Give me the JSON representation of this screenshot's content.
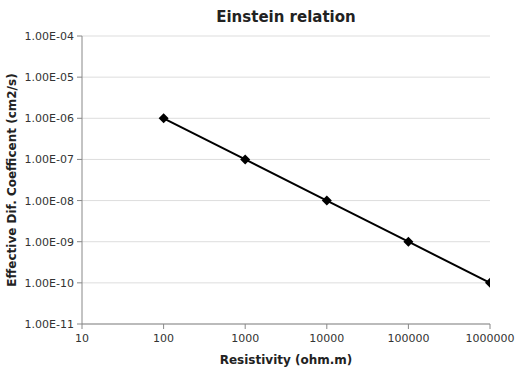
{
  "chart_data": {
    "type": "line",
    "title": "Einstein relation",
    "xlabel": "Resistivity (ohm.m)",
    "ylabel": "Effective Dif. Coefficent (cm2/s)",
    "x": [
      100,
      1000,
      10000,
      100000,
      1000000
    ],
    "series": [
      {
        "color": "#000000",
        "marker": "diamond",
        "values": [
          1e-06,
          1e-07,
          1e-08,
          1e-09,
          1e-10
        ]
      }
    ],
    "xlim": [
      10,
      1000000
    ],
    "ylim": [
      1e-11,
      0.0001
    ],
    "xticks": [
      10,
      100,
      1000,
      10000,
      100000,
      1000000
    ],
    "yticks": [
      {
        "value": 1e-11,
        "label": "1.00E-11"
      },
      {
        "value": 1e-10,
        "label": "1.00E-10"
      },
      {
        "value": 1e-09,
        "label": "1.00E-09"
      },
      {
        "value": 1e-08,
        "label": "1.00E-08"
      },
      {
        "value": 1e-07,
        "label": "1.00E-07"
      },
      {
        "value": 1e-06,
        "label": "1.00E-06"
      },
      {
        "value": 1e-05,
        "label": "1.00E-05"
      },
      {
        "value": 0.0001,
        "label": "1.00E-04"
      }
    ],
    "log": true,
    "grid": true
  }
}
